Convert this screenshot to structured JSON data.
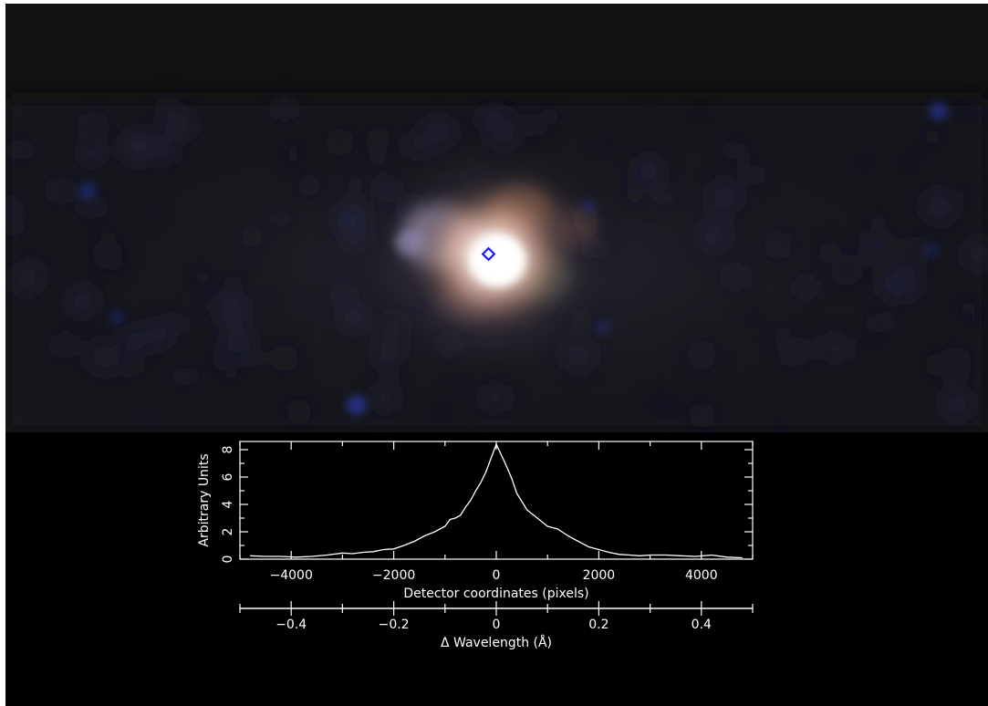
{
  "image": {
    "marker_color": "#1a1aff",
    "background_color": "#121212",
    "marker_icon": "diamond-marker-icon"
  },
  "chart_data": {
    "type": "line",
    "title": "",
    "xlabel": "Detector coordinates (pixels)",
    "ylabel": "Arbitrary Units",
    "secondary_xlabel": "Δ Wavelength (Å)",
    "xlim": [
      -5000,
      5000
    ],
    "ylim": [
      0,
      8.6
    ],
    "secondary_xlim": [
      -0.5,
      0.5
    ],
    "x_ticks": [
      -4000,
      -2000,
      0,
      2000,
      4000
    ],
    "x_tick_labels": [
      "−4000",
      "−2000",
      "0",
      "2000",
      "4000"
    ],
    "y_ticks": [
      0,
      2,
      4,
      6,
      8
    ],
    "y_tick_labels": [
      "0",
      "2",
      "4",
      "6",
      "8"
    ],
    "secondary_x_ticks": [
      -0.4,
      -0.2,
      0,
      0.2,
      0.4
    ],
    "secondary_x_tick_labels": [
      "−0.4",
      "−0.2",
      "0",
      "0.2",
      "0.4"
    ],
    "grid": false,
    "line_color": "#ffffff",
    "series": [
      {
        "x": [
          -4800,
          -4500,
          -4200,
          -3900,
          -3600,
          -3300,
          -3000,
          -2800,
          -2600,
          -2400,
          -2200,
          -2000,
          -1800,
          -1600,
          -1400,
          -1200,
          -1000,
          -900,
          -800,
          -700,
          -600,
          -500,
          -400,
          -300,
          -200,
          -100,
          0,
          100,
          200,
          300,
          400,
          500,
          600,
          700,
          800,
          900,
          1000,
          1200,
          1400,
          1600,
          1800,
          2000,
          2200,
          2400,
          2600,
          2800,
          3000,
          3300,
          3600,
          3900,
          4200,
          4500,
          4800
        ],
        "y": [
          0.25,
          0.2,
          0.2,
          0.15,
          0.2,
          0.3,
          0.45,
          0.4,
          0.5,
          0.55,
          0.7,
          0.75,
          1.0,
          1.3,
          1.7,
          2.0,
          2.4,
          2.9,
          3.0,
          3.2,
          3.8,
          4.3,
          5.0,
          5.6,
          6.4,
          7.4,
          8.4,
          7.6,
          6.8,
          5.9,
          4.8,
          4.2,
          3.6,
          3.3,
          3.0,
          2.7,
          2.4,
          2.2,
          1.7,
          1.3,
          0.9,
          0.7,
          0.5,
          0.35,
          0.3,
          0.25,
          0.3,
          0.3,
          0.25,
          0.2,
          0.3,
          0.15,
          0.1
        ]
      }
    ]
  }
}
